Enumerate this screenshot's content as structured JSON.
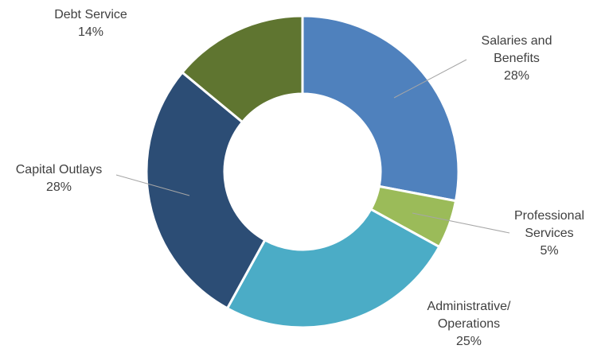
{
  "chart_data": {
    "type": "pie",
    "donut": true,
    "title": "",
    "slices": [
      {
        "name": "Salaries and Benefits",
        "value": 28,
        "label_lines": [
          "Salaries and",
          "Benefits",
          "28%"
        ],
        "color": "#4f81bd"
      },
      {
        "name": "Professional Services",
        "value": 5,
        "label_lines": [
          "Professional",
          "Services",
          "5%"
        ],
        "color": "#9bbb59"
      },
      {
        "name": "Administrative/ Operations",
        "value": 25,
        "label_lines": [
          "Administrative/",
          "Operations",
          "25%"
        ],
        "color": "#4bacc6"
      },
      {
        "name": "Capital Outlays",
        "value": 28,
        "label_lines": [
          "Capital Outlays",
          "28%"
        ],
        "color": "#2c4d75"
      },
      {
        "name": "Debt Service",
        "value": 14,
        "label_lines": [
          "Debt Service",
          "14%"
        ],
        "color": "#5f7530"
      }
    ]
  }
}
